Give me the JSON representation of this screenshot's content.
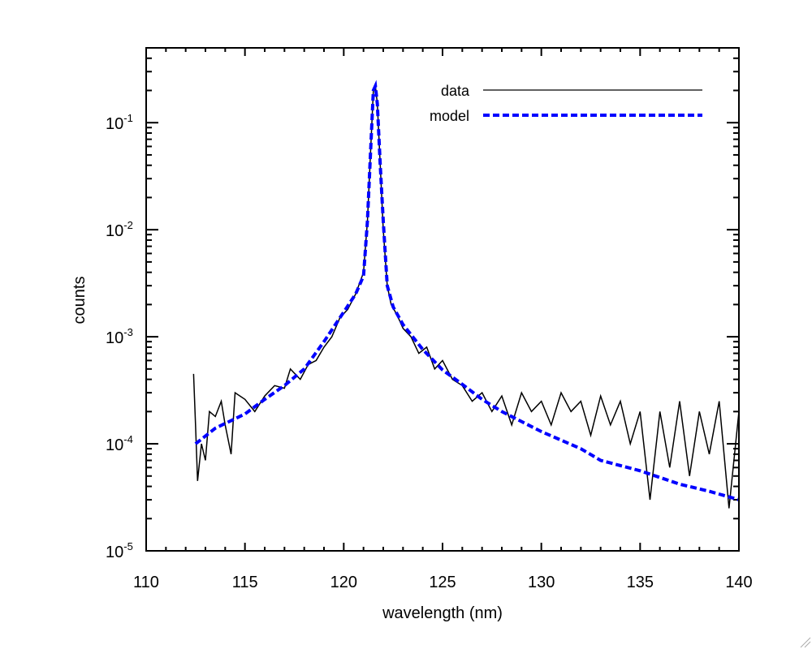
{
  "chart_data": {
    "type": "line",
    "title": "",
    "xlabel": "wavelength (nm)",
    "ylabel": "counts",
    "xlim": [
      110,
      140
    ],
    "ylim": [
      1e-05,
      0.5
    ],
    "y_scale": "log",
    "grid": false,
    "legend_placement": "top-right",
    "x_ticks": [
      110,
      115,
      120,
      125,
      130,
      135,
      140
    ],
    "x_tick_labels": [
      "110",
      "115",
      "120",
      "125",
      "130",
      "135",
      "140"
    ],
    "y_ticks": [
      0.1,
      0.01,
      0.001,
      0.0001,
      1e-05
    ],
    "y_tick_labels": [
      {
        "base": "10",
        "exp": "-1"
      },
      {
        "base": "10",
        "exp": "-2"
      },
      {
        "base": "10",
        "exp": "-3"
      },
      {
        "base": "10",
        "exp": "-4"
      },
      {
        "base": "10",
        "exp": "-5"
      }
    ],
    "series": [
      {
        "name": "data",
        "color": "#000000",
        "style": "solid",
        "x": [
          112.4,
          112.5,
          112.6,
          112.8,
          113.0,
          113.2,
          113.5,
          113.8,
          114.0,
          114.3,
          114.5,
          115.0,
          115.5,
          116.0,
          116.5,
          117.0,
          117.3,
          117.8,
          118.2,
          118.6,
          119.0,
          119.4,
          119.8,
          120.2,
          120.6,
          121.0,
          121.2,
          121.35,
          121.5,
          121.6,
          121.7,
          121.85,
          122.0,
          122.2,
          122.4,
          122.7,
          123.0,
          123.4,
          123.8,
          124.2,
          124.6,
          125.0,
          125.5,
          126.0,
          126.5,
          127.0,
          127.5,
          128.0,
          128.5,
          129.0,
          129.5,
          130.0,
          130.5,
          131.0,
          131.5,
          132.0,
          132.5,
          133.0,
          133.5,
          134.0,
          134.5,
          135.0,
          135.5,
          136.0,
          136.5,
          137.0,
          137.5,
          138.0,
          138.5,
          139.0,
          139.5,
          140.0
        ],
        "y": [
          0.00045,
          0.00015,
          4.5e-05,
          0.0001,
          7e-05,
          0.0002,
          0.00018,
          0.00025,
          0.00015,
          8e-05,
          0.0003,
          0.00026,
          0.0002,
          0.00028,
          0.00035,
          0.00033,
          0.0005,
          0.0004,
          0.00055,
          0.0006,
          0.0008,
          0.001,
          0.0015,
          0.0018,
          0.0025,
          0.004,
          0.012,
          0.05,
          0.2,
          0.22,
          0.15,
          0.04,
          0.01,
          0.003,
          0.002,
          0.0016,
          0.0012,
          0.001,
          0.0007,
          0.0008,
          0.0005,
          0.0006,
          0.0004,
          0.00035,
          0.00025,
          0.0003,
          0.0002,
          0.00028,
          0.00015,
          0.0003,
          0.0002,
          0.00025,
          0.00015,
          0.0003,
          0.0002,
          0.00025,
          0.00012,
          0.00028,
          0.00015,
          0.00025,
          0.0001,
          0.0002,
          3e-05,
          0.0002,
          6e-05,
          0.00025,
          5e-05,
          0.0002,
          8e-05,
          0.00025,
          2.5e-05,
          0.0002
        ]
      },
      {
        "name": "model",
        "color": "#0000ff",
        "style": "dashed",
        "x": [
          112.5,
          113.5,
          115.0,
          116.0,
          117.0,
          118.0,
          119.0,
          120.0,
          120.6,
          121.0,
          121.2,
          121.35,
          121.5,
          121.6,
          121.7,
          121.85,
          122.0,
          122.2,
          122.5,
          123.0,
          124.0,
          125.0,
          126.0,
          127.0,
          128.0,
          130.0,
          132.0,
          133.0,
          135.0,
          137.0,
          138.5,
          140.0
        ],
        "y": [
          0.0001,
          0.00014,
          0.00019,
          0.00026,
          0.00035,
          0.0005,
          0.0009,
          0.0017,
          0.0025,
          0.0037,
          0.012,
          0.05,
          0.2,
          0.22,
          0.15,
          0.04,
          0.012,
          0.003,
          0.0019,
          0.0013,
          0.00076,
          0.00049,
          0.00036,
          0.00026,
          0.0002,
          0.00013,
          9e-05,
          7e-05,
          5.6e-05,
          4.2e-05,
          3.6e-05,
          3e-05
        ]
      }
    ]
  }
}
